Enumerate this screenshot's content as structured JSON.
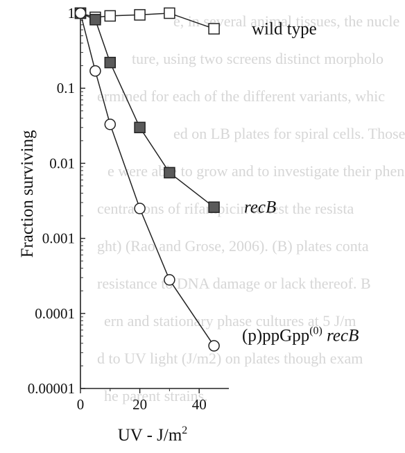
{
  "chart_data": {
    "type": "scatter",
    "xlabel_text": "UV - J/m",
    "xlabel_sup": "2",
    "ylabel": "Fraction surviving",
    "xlim": [
      0,
      50
    ],
    "ylim": [
      1e-05,
      1
    ],
    "y_scale": "log",
    "xticks": [
      0,
      20,
      40
    ],
    "yticks": [
      {
        "value": 1,
        "label": "1"
      },
      {
        "value": 0.1,
        "label": "0.1"
      },
      {
        "value": 0.01,
        "label": "0.01"
      },
      {
        "value": 0.001,
        "label": "0.001"
      },
      {
        "value": 0.0001,
        "label": "0.0001"
      },
      {
        "value": 1e-05,
        "label": "0.00001"
      }
    ],
    "series": [
      {
        "name": "wild type",
        "marker": "open-square",
        "x": [
          0,
          5,
          10,
          20,
          30,
          45
        ],
        "y": [
          1,
          0.88,
          0.92,
          0.95,
          1.0,
          0.62
        ]
      },
      {
        "name": "recB",
        "marker": "filled-square",
        "x": [
          0,
          5,
          10,
          20,
          30,
          45
        ],
        "y": [
          1,
          0.82,
          0.22,
          0.03,
          0.0075,
          0.0026
        ]
      },
      {
        "name": "(p)ppGpp(0) recB",
        "name_parts": {
          "main": "(p)ppGpp",
          "sup": "(0)",
          "italic": "recB"
        },
        "marker": "open-circle",
        "x": [
          0,
          5,
          10,
          20,
          30,
          45
        ],
        "y": [
          1,
          0.17,
          0.033,
          0.0025,
          0.00028,
          3.7e-05
        ]
      }
    ]
  },
  "background_text": [
    "e, in several animal tissues, the nucle",
    "ture, using two screens distinct morpholo",
    "ermined for each of the different variants, whic",
    "ed on LB plates for spiral cells. Those m",
    "e were able to grow and to investigate their phen",
    "centrations of rifampicin to test the resista",
    "ght) (Rao and Grose, 2006). (B) plates conta",
    "resistance to DNA damage or lack thereof. B",
    "ern and stationary phase cultures at 5 J/m",
    "d to UV light (J/m2) on plates though exam",
    "he parent strains."
  ]
}
